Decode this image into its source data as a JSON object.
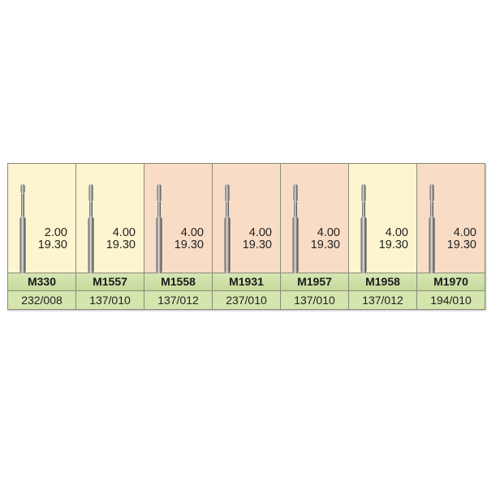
{
  "colors": {
    "yellow": "#fdf5cf",
    "peach": "#f8dcc5",
    "green": "#cfe1a6"
  },
  "products": [
    {
      "name": "M330",
      "head_length": "2.00",
      "total_length": "19.30",
      "code": "232/008",
      "bg": "yellow"
    },
    {
      "name": "M1557",
      "head_length": "4.00",
      "total_length": "19.30",
      "code": "137/010",
      "bg": "yellow"
    },
    {
      "name": "M1558",
      "head_length": "4.00",
      "total_length": "19.30",
      "code": "137/012",
      "bg": "peach"
    },
    {
      "name": "M1931",
      "head_length": "4.00",
      "total_length": "19.30",
      "code": "237/010",
      "bg": "peach"
    },
    {
      "name": "M1957",
      "head_length": "4.00",
      "total_length": "19.30",
      "code": "137/010",
      "bg": "peach"
    },
    {
      "name": "M1958",
      "head_length": "4.00",
      "total_length": "19.30",
      "code": "137/012",
      "bg": "yellow"
    },
    {
      "name": "M1970",
      "head_length": "4.00",
      "total_length": "19.30",
      "code": "194/010",
      "bg": "peach"
    }
  ]
}
